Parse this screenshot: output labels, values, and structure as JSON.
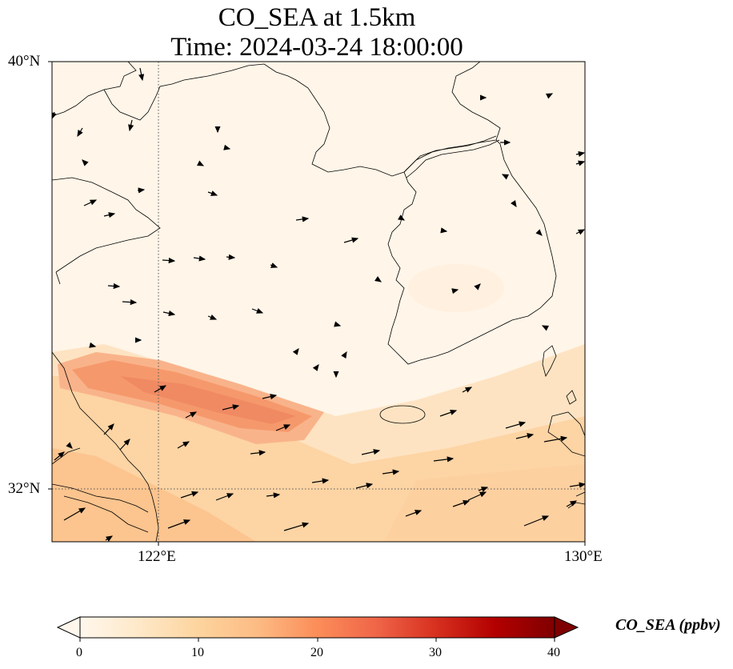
{
  "title": {
    "line1": "CO_SEA at 1.5km",
    "line2": "Time: 2024-03-24 18:00:00"
  },
  "map": {
    "lat_range": [
      31,
      40
    ],
    "lon_range": [
      120,
      130
    ],
    "lat_ticks": [
      {
        "value": 40,
        "label": "40°N"
      },
      {
        "value": 32,
        "label": "32°N"
      }
    ],
    "lon_ticks": [
      {
        "value": 122,
        "label": "122°E"
      },
      {
        "value": 130,
        "label": "130°E"
      }
    ],
    "gridlines": "dotted at 122°E and 32°N"
  },
  "colorbar": {
    "label": "CO_SEA (ppbv)",
    "colormap": "OrRd",
    "range": [
      0,
      40
    ],
    "extend": "both",
    "ticks": [
      "0",
      "10",
      "20",
      "30",
      "40"
    ]
  },
  "colors": {
    "background_field": "#fff5e8",
    "plume_max": "#f08a63",
    "coastline": "#000000"
  }
}
